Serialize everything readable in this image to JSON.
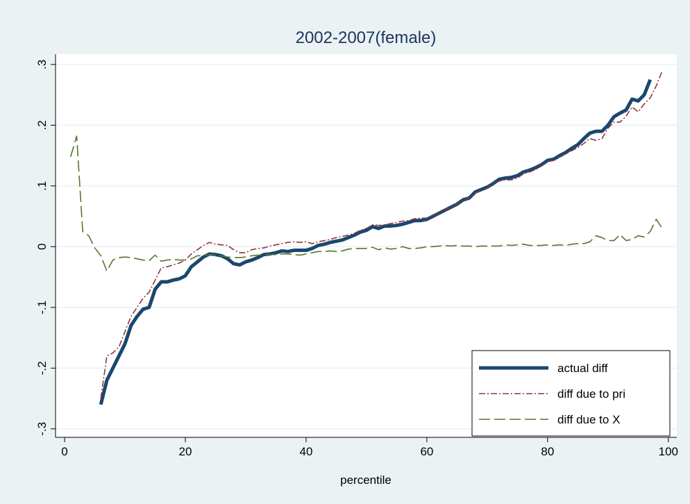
{
  "chart_data": {
    "type": "line",
    "title": "2002-2007(female)",
    "x_label": "percentile",
    "x": [
      1,
      2,
      3,
      4,
      5,
      6,
      7,
      8,
      9,
      10,
      11,
      12,
      13,
      14,
      15,
      16,
      17,
      18,
      19,
      20,
      21,
      22,
      23,
      24,
      25,
      26,
      27,
      28,
      29,
      30,
      31,
      32,
      33,
      34,
      35,
      36,
      37,
      38,
      39,
      40,
      41,
      42,
      43,
      44,
      45,
      46,
      47,
      48,
      49,
      50,
      51,
      52,
      53,
      54,
      55,
      56,
      57,
      58,
      59,
      60,
      61,
      62,
      63,
      64,
      65,
      66,
      67,
      68,
      69,
      70,
      71,
      72,
      73,
      74,
      75,
      76,
      77,
      78,
      79,
      80,
      81,
      82,
      83,
      84,
      85,
      86,
      87,
      88,
      89,
      90,
      91,
      92,
      93,
      94,
      95,
      96,
      97,
      98,
      99
    ],
    "series": [
      {
        "name": "actual diff",
        "color": "#1a476f",
        "width": 5,
        "dash": "none",
        "values": [
          null,
          null,
          null,
          null,
          null,
          -0.26,
          -0.22,
          -0.2,
          -0.18,
          -0.16,
          -0.13,
          -0.115,
          -0.103,
          -0.1,
          -0.07,
          -0.058,
          -0.058,
          -0.055,
          -0.053,
          -0.048,
          -0.033,
          -0.025,
          -0.017,
          -0.012,
          -0.013,
          -0.015,
          -0.02,
          -0.028,
          -0.03,
          -0.025,
          -0.022,
          -0.018,
          -0.013,
          -0.012,
          -0.01,
          -0.007,
          -0.008,
          -0.006,
          -0.006,
          -0.006,
          -0.003,
          0.002,
          0.004,
          0.007,
          0.009,
          0.011,
          0.015,
          0.019,
          0.024,
          0.027,
          0.033,
          0.03,
          0.034,
          0.034,
          0.035,
          0.037,
          0.04,
          0.043,
          0.043,
          0.045,
          0.05,
          0.055,
          0.06,
          0.065,
          0.07,
          0.077,
          0.08,
          0.09,
          0.094,
          0.098,
          0.104,
          0.111,
          0.113,
          0.114,
          0.117,
          0.123,
          0.126,
          0.13,
          0.135,
          0.142,
          0.144,
          0.15,
          0.155,
          0.162,
          0.168,
          0.178,
          0.187,
          0.19,
          0.19,
          0.2,
          0.214,
          0.22,
          0.225,
          0.243,
          0.24,
          0.25,
          0.275,
          null,
          null
        ]
      },
      {
        "name": "diff due to pri",
        "color": "#90353b",
        "width": 1.6,
        "dash": "9 3 2 3",
        "values": [
          null,
          null,
          null,
          null,
          null,
          -0.25,
          -0.18,
          -0.175,
          -0.165,
          -0.14,
          -0.115,
          -0.1,
          -0.085,
          -0.075,
          -0.055,
          -0.035,
          -0.033,
          -0.03,
          -0.027,
          -0.022,
          -0.012,
          -0.005,
          0.002,
          0.007,
          0.004,
          0.003,
          0.002,
          -0.005,
          -0.01,
          -0.01,
          -0.005,
          -0.003,
          -0.002,
          0.001,
          0.003,
          0.005,
          0.007,
          0.008,
          0.007,
          0.008,
          0.005,
          0.008,
          0.01,
          0.012,
          0.015,
          0.017,
          0.019,
          0.022,
          0.027,
          0.03,
          0.036,
          0.035,
          0.036,
          0.038,
          0.04,
          0.042,
          0.043,
          0.046,
          0.047,
          0.047,
          0.051,
          0.056,
          0.061,
          0.065,
          0.07,
          0.075,
          0.08,
          0.088,
          0.093,
          0.097,
          0.103,
          0.108,
          0.11,
          0.11,
          0.113,
          0.12,
          0.123,
          0.127,
          0.133,
          0.14,
          0.142,
          0.147,
          0.153,
          0.158,
          0.163,
          0.17,
          0.178,
          0.175,
          0.178,
          0.195,
          0.205,
          0.205,
          0.215,
          0.23,
          0.222,
          0.235,
          0.245,
          0.265,
          0.29
        ]
      },
      {
        "name": "diff due to X",
        "color": "#55752f",
        "width": 1.6,
        "dash": "16 6",
        "values": [
          0.148,
          0.182,
          0.025,
          0.018,
          -0.002,
          -0.015,
          -0.04,
          -0.022,
          -0.018,
          -0.017,
          -0.018,
          -0.02,
          -0.022,
          -0.023,
          -0.014,
          -0.024,
          -0.022,
          -0.021,
          -0.022,
          -0.022,
          -0.02,
          -0.015,
          -0.015,
          -0.013,
          -0.014,
          -0.015,
          -0.017,
          -0.018,
          -0.018,
          -0.017,
          -0.015,
          -0.014,
          -0.013,
          -0.013,
          -0.013,
          -0.012,
          -0.012,
          -0.013,
          -0.014,
          -0.012,
          -0.01,
          -0.008,
          -0.008,
          -0.007,
          -0.008,
          -0.007,
          -0.004,
          -0.003,
          -0.003,
          -0.003,
          -0.001,
          -0.005,
          -0.002,
          -0.004,
          -0.003,
          0,
          -0.003,
          -0.003,
          -0.002,
          0,
          0,
          0.001,
          0.002,
          0.001,
          0.002,
          0.001,
          0.001,
          0,
          0.001,
          0.001,
          0.001,
          0.001,
          0.003,
          0.002,
          0.003,
          0.004,
          0.002,
          0.002,
          0.002,
          0.003,
          0.002,
          0.003,
          0.002,
          0.004,
          0.005,
          0.005,
          0.008,
          0.018,
          0.015,
          0.01,
          0.01,
          0.02,
          0.01,
          0.012,
          0.018,
          0.016,
          0.025,
          0.045,
          0.03
        ]
      }
    ],
    "xlim": [
      -1.5,
      101.4
    ],
    "xticks": [
      0,
      20,
      40,
      60,
      80,
      100
    ],
    "ylim": [
      -0.314,
      0.317
    ],
    "yticks": [
      {
        "value": -0.3,
        "label": "-.3"
      },
      {
        "value": -0.2,
        "label": "-.2"
      },
      {
        "value": -0.1,
        "label": "-.1"
      },
      0,
      {
        "value": 0.1,
        "label": ".1"
      },
      {
        "value": 0.2,
        "label": ".2"
      },
      {
        "value": 0.3,
        "label": ".3"
      }
    ],
    "grid": true,
    "legend": "lower right"
  }
}
